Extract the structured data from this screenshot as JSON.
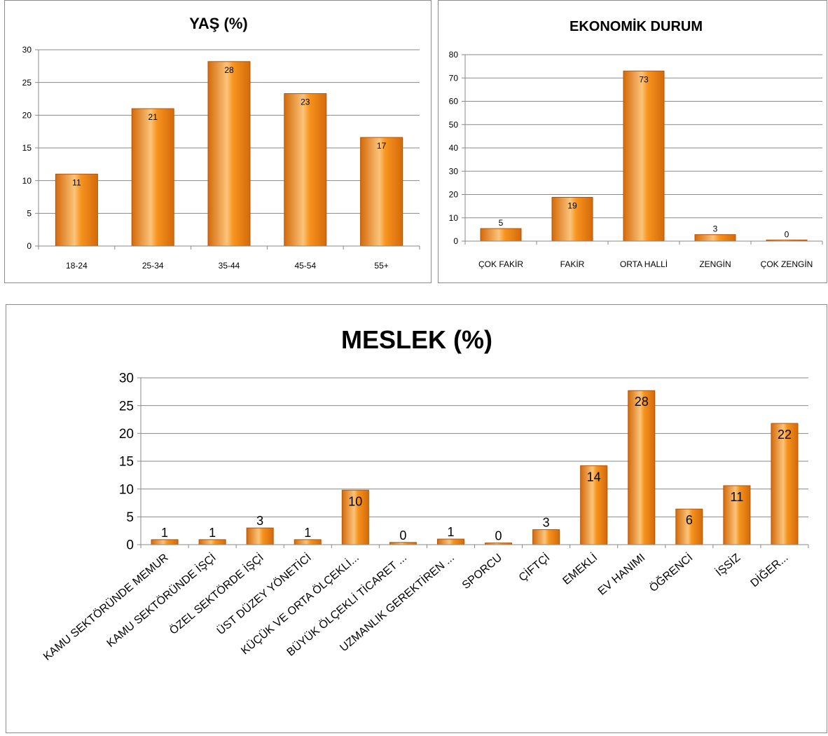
{
  "style": {
    "bar_color": "#f7931e",
    "bar_highlight": "#fbc47a",
    "bar_shadow": "#d46a0a",
    "grid_color": "#8a8a8a"
  },
  "chart_data": [
    {
      "id": "age",
      "type": "bar",
      "title": "YAŞ (%)",
      "categories": [
        "18-24",
        "25-34",
        "35-44",
        "45-54",
        "55+"
      ],
      "values": [
        11,
        21,
        28,
        23,
        17
      ],
      "heights": [
        11,
        21,
        28.2,
        23.3,
        16.6
      ],
      "ylim": [
        0,
        30
      ],
      "yticks": [
        0,
        5,
        10,
        15,
        20,
        25,
        30
      ],
      "grid": true,
      "legend": "none"
    },
    {
      "id": "eco",
      "type": "bar",
      "title": "EKONOMİK DURUM",
      "categories": [
        "ÇOK FAKİR",
        "FAKİR",
        "ORTA HALLİ",
        "ZENGİN",
        "ÇOK ZENGİN"
      ],
      "values": [
        5,
        19,
        73,
        3,
        0
      ],
      "heights": [
        5.4,
        18.8,
        73,
        2.8,
        0.5
      ],
      "ylim": [
        0,
        80
      ],
      "yticks": [
        0,
        10,
        20,
        30,
        40,
        50,
        60,
        70,
        80
      ],
      "grid": true,
      "legend": "none"
    },
    {
      "id": "job",
      "type": "bar",
      "title": "MESLEK (%)",
      "categories": [
        "KAMU SEKTÖRÜNDE MEMUR",
        "KAMU SEKTÖRÜNDE İŞÇİ",
        "ÖZEL SEKTÖRDE İŞÇİ",
        "ÜST DÜZEY YÖNETİCİ",
        "KÜÇÜK VE ORTA ÖLÇEKLİ...",
        "BÜYÜK ÖLÇEKLİ TİCARET ...",
        "UZMANLIK GEREKTİREN ...",
        "SPORCU",
        "ÇİFTÇİ",
        "EMEKLİ",
        "EV HANIMI",
        "ÖĞRENCİ",
        "İŞSİZ",
        "DİĞER..."
      ],
      "values": [
        1,
        1,
        3,
        1,
        10,
        0,
        1,
        0,
        3,
        14,
        28,
        6,
        11,
        22
      ],
      "heights": [
        0.9,
        0.9,
        3,
        0.9,
        9.8,
        0.4,
        1,
        0.3,
        2.7,
        14.2,
        27.7,
        6.4,
        10.6,
        21.8
      ],
      "ylim": [
        0,
        30
      ],
      "yticks": [
        0,
        5,
        10,
        15,
        20,
        25,
        30
      ],
      "grid": true,
      "legend": "none"
    }
  ]
}
